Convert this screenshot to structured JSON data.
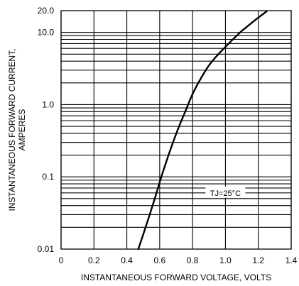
{
  "chart_data": {
    "type": "line",
    "title": "",
    "xlabel": "INSTANTANEOUS FORWARD VOLTAGE, VOLTS",
    "ylabel_lines": [
      "INSTANTANEOUS FORWARD CURRENT,",
      "AMPERES"
    ],
    "x_scale": "linear",
    "y_scale": "log",
    "xlim": [
      0,
      1.4
    ],
    "ylim": [
      0.01,
      20
    ],
    "x_ticks": [
      {
        "value": 0,
        "label": "0"
      },
      {
        "value": 0.2,
        "label": "0.2"
      },
      {
        "value": 0.4,
        "label": "0.4"
      },
      {
        "value": 0.6,
        "label": "0.6"
      },
      {
        "value": 0.8,
        "label": "0.8"
      },
      {
        "value": 1.0,
        "label": "1.0"
      },
      {
        "value": 1.2,
        "label": "1.2"
      },
      {
        "value": 1.4,
        "label": "1.4"
      }
    ],
    "y_ticks": [
      {
        "value": 0.01,
        "label": "0.01"
      },
      {
        "value": 0.1,
        "label": "0.1"
      },
      {
        "value": 1,
        "label": "1.0"
      },
      {
        "value": 10,
        "label": "10.0"
      },
      {
        "value": 20,
        "label": "20.0"
      }
    ],
    "grid": true,
    "annotation": {
      "text": "TJ=25°C",
      "x": 1.0,
      "y": 0.06
    },
    "series": [
      {
        "color": "#000000",
        "points": [
          {
            "x": 0.47,
            "y": 0.01
          },
          {
            "x": 0.52,
            "y": 0.022
          },
          {
            "x": 0.57,
            "y": 0.05
          },
          {
            "x": 0.61,
            "y": 0.1
          },
          {
            "x": 0.66,
            "y": 0.22
          },
          {
            "x": 0.71,
            "y": 0.45
          },
          {
            "x": 0.76,
            "y": 0.85
          },
          {
            "x": 0.8,
            "y": 1.4
          },
          {
            "x": 0.85,
            "y": 2.3
          },
          {
            "x": 0.9,
            "y": 3.5
          },
          {
            "x": 0.95,
            "y": 4.8
          },
          {
            "x": 1.0,
            "y": 6.3
          },
          {
            "x": 1.05,
            "y": 8.2
          },
          {
            "x": 1.1,
            "y": 10.5
          },
          {
            "x": 1.15,
            "y": 13.0
          },
          {
            "x": 1.2,
            "y": 16.0
          },
          {
            "x": 1.25,
            "y": 19.5
          }
        ]
      }
    ]
  }
}
